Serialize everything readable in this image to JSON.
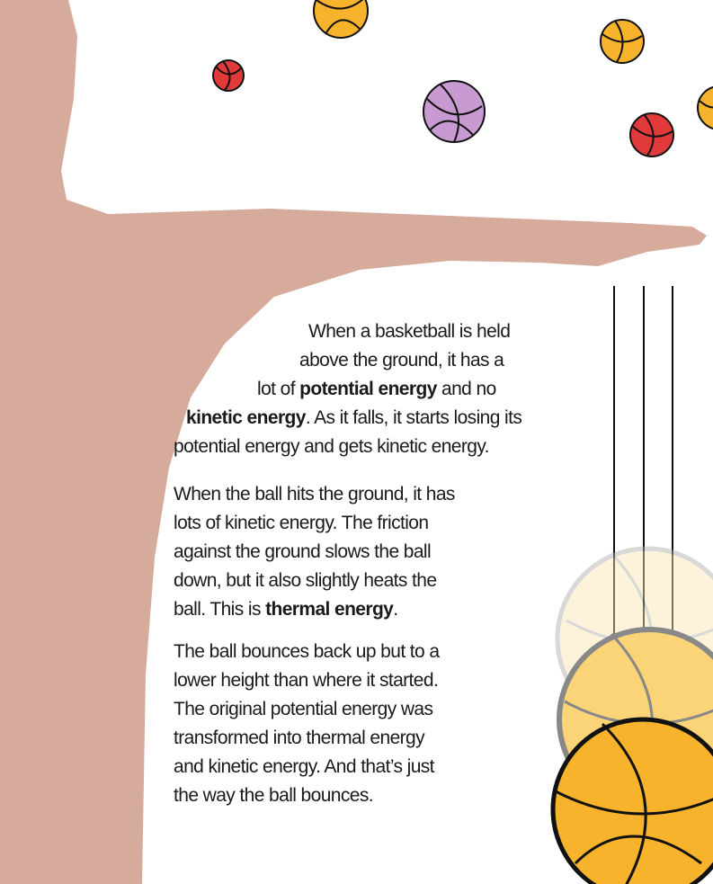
{
  "text": {
    "paragraphs": [
      {
        "lines": [
          [
            "When a basketball is held"
          ],
          [
            "above the ground, it has a"
          ],
          [
            "lot of ",
            "potential energy",
            " and no"
          ],
          [
            "kinetic energy",
            ". As it falls, it starts losing its"
          ],
          [
            "potential energy and gets kinetic energy."
          ]
        ]
      },
      {
        "lines": [
          [
            "When the ball hits the ground, it has"
          ],
          [
            "lots of kinetic energy. The friction"
          ],
          [
            "against the ground slows the ball"
          ],
          [
            "down, but it also slightly heats the"
          ],
          [
            "ball. This is ",
            "thermal energy",
            "."
          ]
        ]
      },
      {
        "lines": [
          [
            "The ball bounces back up but to a"
          ],
          [
            "lower height than where it started."
          ],
          [
            "The original potential energy was"
          ],
          [
            "transformed into thermal energy"
          ],
          [
            "and kinetic energy. And that’s just"
          ],
          [
            "the way the ball bounces."
          ]
        ]
      }
    ]
  }
}
